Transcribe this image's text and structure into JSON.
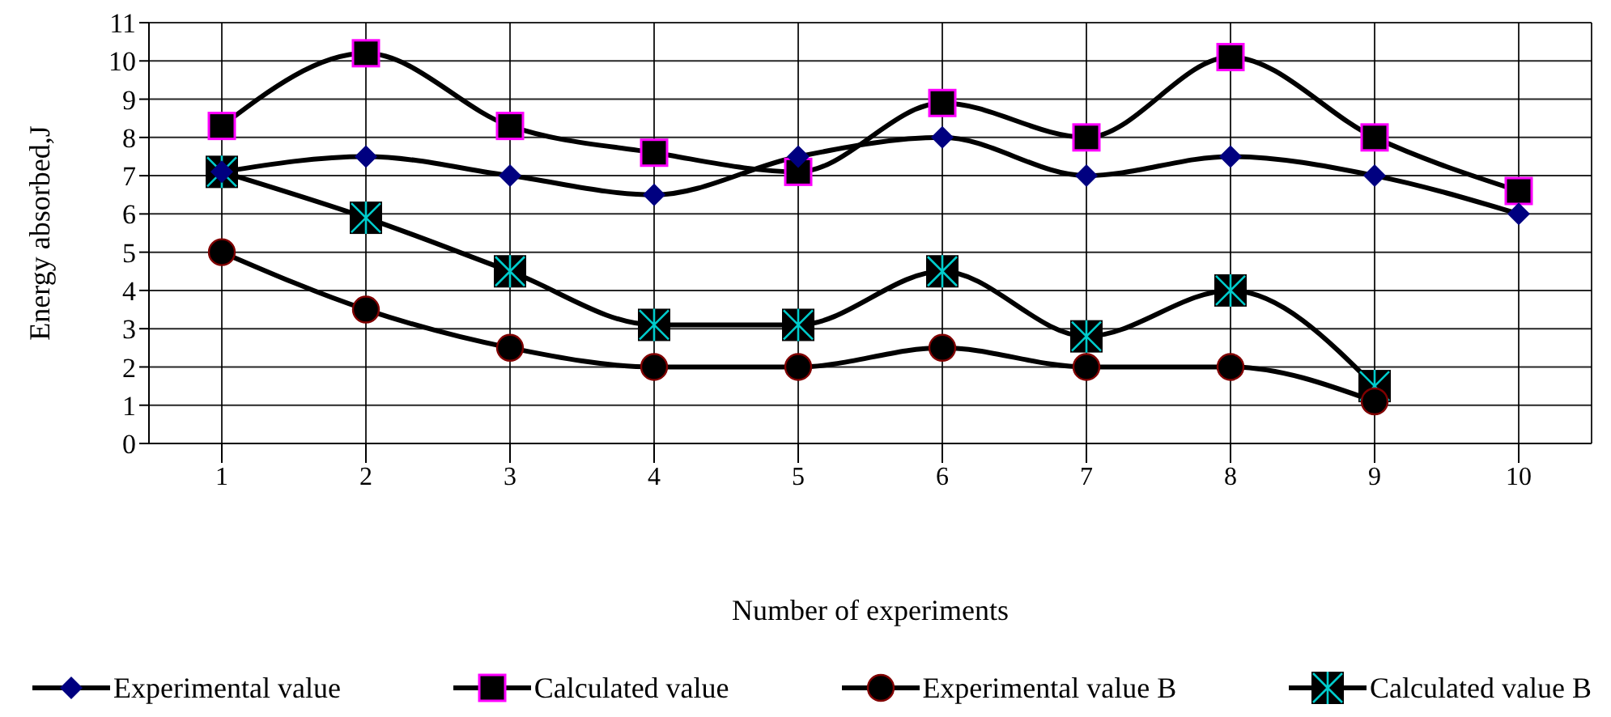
{
  "chart_data": {
    "type": "line",
    "xlabel": "Number of experiments",
    "ylabel": "Energy absorbed,J",
    "categories": [
      "1",
      "2",
      "3",
      "4",
      "5",
      "6",
      "7",
      "8",
      "9",
      "10"
    ],
    "ylim": [
      0,
      11
    ],
    "yticks": [
      0,
      1,
      2,
      3,
      4,
      5,
      6,
      7,
      8,
      9,
      10,
      11
    ],
    "grid": true,
    "legend": "bottom",
    "series": [
      {
        "name": "Experimental value",
        "color": "#000080",
        "marker": "diamond",
        "values": [
          7.1,
          7.5,
          7.0,
          6.5,
          7.5,
          8.0,
          7.0,
          7.5,
          7.0,
          6.0
        ]
      },
      {
        "name": "Calculated value",
        "color": "#ff00ff",
        "marker": "square",
        "values": [
          8.3,
          10.2,
          8.3,
          7.6,
          7.1,
          8.9,
          8.0,
          10.1,
          8.0,
          6.6
        ]
      },
      {
        "name": "Experimental value B",
        "color": "#800000",
        "marker": "circle",
        "values": [
          5.0,
          3.5,
          2.5,
          2.0,
          2.0,
          2.5,
          2.0,
          2.0,
          1.1,
          null
        ]
      },
      {
        "name": "Calculated value B",
        "color": "#00cccc",
        "marker": "cross",
        "values": [
          7.1,
          5.9,
          4.5,
          3.1,
          3.1,
          4.5,
          2.8,
          4.0,
          1.5,
          null
        ]
      }
    ]
  }
}
